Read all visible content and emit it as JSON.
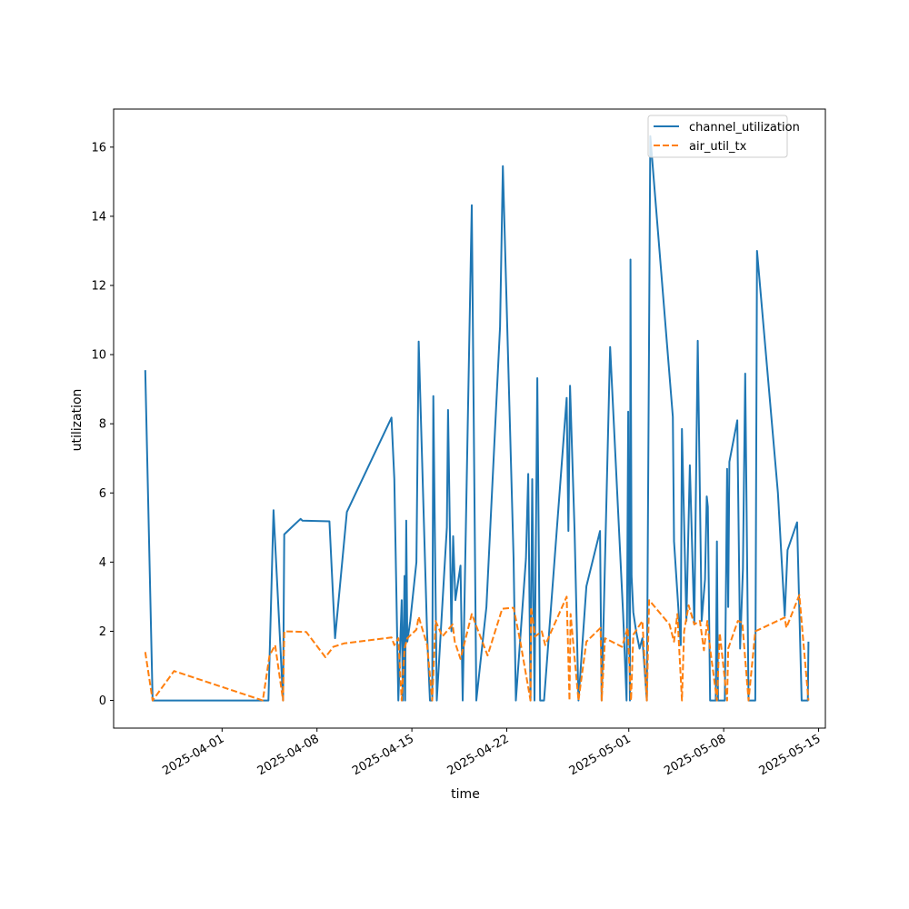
{
  "chart_data": {
    "type": "line",
    "title": "",
    "xlabel": "time",
    "ylabel": "utilization",
    "x_axis_type": "date",
    "xlim": [
      "2025-03-24T00:00",
      "2025-05-15T12:00"
    ],
    "ylim": [
      -0.8,
      17.1
    ],
    "grid": false,
    "legend": "top-right",
    "xticks": [
      "2025-04-01",
      "2025-04-08",
      "2025-04-15",
      "2025-04-22",
      "2025-05-01",
      "2025-05-08",
      "2025-05-15"
    ],
    "yticks": [
      0,
      2,
      4,
      6,
      8,
      10,
      12,
      14,
      16
    ],
    "series": [
      {
        "name": "channel_utilization",
        "color": "#1f77b4",
        "style": "solid",
        "points": [
          [
            "2025-03-26T08:00",
            9.55
          ],
          [
            "2025-03-26T21:00",
            0.0
          ],
          [
            "2025-04-04T00:00",
            0.0
          ],
          [
            "2025-04-04T10:00",
            0.0
          ],
          [
            "2025-04-04T19:00",
            5.5
          ],
          [
            "2025-04-05T12:00",
            0.0
          ],
          [
            "2025-04-05T14:00",
            4.8
          ],
          [
            "2025-04-06T06:00",
            5.05
          ],
          [
            "2025-04-06T19:00",
            5.25
          ],
          [
            "2025-04-06T22:00",
            5.2
          ],
          [
            "2025-04-08T22:00",
            5.18
          ],
          [
            "2025-04-09T08:00",
            1.8
          ],
          [
            "2025-04-10T05:00",
            5.45
          ],
          [
            "2025-04-13T12:00",
            8.18
          ],
          [
            "2025-04-13T17:00",
            6.4
          ],
          [
            "2025-04-14T00:00",
            0.0
          ],
          [
            "2025-04-14T06:00",
            2.9
          ],
          [
            "2025-04-14T08:00",
            0.0
          ],
          [
            "2025-04-14T11:00",
            3.6
          ],
          [
            "2025-04-14T12:00",
            0.0
          ],
          [
            "2025-04-14T14:00",
            5.2
          ],
          [
            "2025-04-14T16:00",
            1.7
          ],
          [
            "2025-04-14T21:00",
            2.3
          ],
          [
            "2025-04-15T08:00",
            4.0
          ],
          [
            "2025-04-15T12:00",
            10.38
          ],
          [
            "2025-04-16T03:00",
            1.9
          ],
          [
            "2025-04-16T08:00",
            0.0
          ],
          [
            "2025-04-16T12:00",
            0.0
          ],
          [
            "2025-04-16T14:00",
            8.8
          ],
          [
            "2025-04-16T20:00",
            0.0
          ],
          [
            "2025-04-17T14:00",
            5.0
          ],
          [
            "2025-04-17T16:00",
            8.4
          ],
          [
            "2025-04-17T22:00",
            2.0
          ],
          [
            "2025-04-18T01:00",
            4.75
          ],
          [
            "2025-04-18T05:00",
            2.9
          ],
          [
            "2025-04-18T14:00",
            3.9
          ],
          [
            "2025-04-18T18:00",
            0.0
          ],
          [
            "2025-04-19T10:00",
            14.32
          ],
          [
            "2025-04-19T18:00",
            0.0
          ],
          [
            "2025-04-20T12:00",
            2.7
          ],
          [
            "2025-04-21T12:00",
            10.8
          ],
          [
            "2025-04-21T17:00",
            15.45
          ],
          [
            "2025-04-22T12:00",
            4.1
          ],
          [
            "2025-04-22T16:00",
            0.0
          ],
          [
            "2025-04-23T10:00",
            4.1
          ],
          [
            "2025-04-23T14:00",
            6.55
          ],
          [
            "2025-04-23T18:00",
            0.0
          ],
          [
            "2025-04-23T21:00",
            6.4
          ],
          [
            "2025-04-24T01:00",
            0.0
          ],
          [
            "2025-04-24T06:00",
            9.32
          ],
          [
            "2025-04-24T11:00",
            0.0
          ],
          [
            "2025-04-24T18:00",
            0.0
          ],
          [
            "2025-04-26T10:00",
            8.75
          ],
          [
            "2025-04-26T13:00",
            4.9
          ],
          [
            "2025-04-26T16:00",
            9.1
          ],
          [
            "2025-04-27T00:00",
            4.9
          ],
          [
            "2025-04-27T07:00",
            0.0
          ],
          [
            "2025-04-27T21:00",
            3.3
          ],
          [
            "2025-04-28T21:00",
            4.9
          ],
          [
            "2025-04-29T00:00",
            0.0
          ],
          [
            "2025-04-29T15:00",
            10.22
          ],
          [
            "2025-04-30T14:00",
            2.5
          ],
          [
            "2025-04-30T20:00",
            0.0
          ],
          [
            "2025-04-30T23:00",
            8.35
          ],
          [
            "2025-05-01T00:00",
            4.5
          ],
          [
            "2025-05-01T02:00",
            0.0
          ],
          [
            "2025-05-01T03:00",
            12.75
          ],
          [
            "2025-05-01T05:00",
            3.6
          ],
          [
            "2025-05-01T08:00",
            2.55
          ],
          [
            "2025-05-01T13:00",
            2.0
          ],
          [
            "2025-05-01T19:00",
            1.5
          ],
          [
            "2025-05-02T00:00",
            1.8
          ],
          [
            "2025-05-02T08:00",
            0.0
          ],
          [
            "2025-05-02T14:00",
            16.32
          ],
          [
            "2025-05-04T06:00",
            8.2
          ],
          [
            "2025-05-04T08:00",
            4.6
          ],
          [
            "2025-05-04T20:00",
            1.6
          ],
          [
            "2025-05-04T22:00",
            7.85
          ],
          [
            "2025-05-05T06:00",
            2.3
          ],
          [
            "2025-05-05T12:00",
            6.8
          ],
          [
            "2025-05-05T20:00",
            2.2
          ],
          [
            "2025-05-06T02:00",
            10.4
          ],
          [
            "2025-05-06T09:00",
            2.3
          ],
          [
            "2025-05-06T15:00",
            3.5
          ],
          [
            "2025-05-06T18:00",
            5.9
          ],
          [
            "2025-05-06T20:00",
            5.6
          ],
          [
            "2025-05-07T00:00",
            0.0
          ],
          [
            "2025-05-07T10:00",
            0.0
          ],
          [
            "2025-05-07T12:00",
            4.6
          ],
          [
            "2025-05-07T14:00",
            0.0
          ],
          [
            "2025-05-08T02:00",
            0.0
          ],
          [
            "2025-05-08T06:00",
            6.7
          ],
          [
            "2025-05-08T08:00",
            2.7
          ],
          [
            "2025-05-08T10:00",
            6.9
          ],
          [
            "2025-05-09T00:00",
            8.1
          ],
          [
            "2025-05-09T05:00",
            1.5
          ],
          [
            "2025-05-09T10:00",
            3.8
          ],
          [
            "2025-05-09T14:00",
            9.45
          ],
          [
            "2025-05-09T20:00",
            0.0
          ],
          [
            "2025-05-10T08:00",
            0.0
          ],
          [
            "2025-05-10T11:00",
            13.0
          ],
          [
            "2025-05-12T00:00",
            6.0
          ],
          [
            "2025-05-12T12:00",
            2.45
          ],
          [
            "2025-05-12T17:00",
            4.35
          ],
          [
            "2025-05-13T10:00",
            5.15
          ],
          [
            "2025-05-13T18:00",
            0.0
          ],
          [
            "2025-05-14T05:00",
            0.0
          ],
          [
            "2025-05-14T06:00",
            1.7
          ]
        ]
      },
      {
        "name": "air_util_tx",
        "color": "#ff7f0e",
        "style": "dashed",
        "points": [
          [
            "2025-03-26T08:00",
            1.4
          ],
          [
            "2025-03-26T21:00",
            0.0
          ],
          [
            "2025-03-28T11:00",
            0.85
          ],
          [
            "2025-04-04T00:00",
            0.0
          ],
          [
            "2025-04-04T12:00",
            1.3
          ],
          [
            "2025-04-04T22:00",
            1.6
          ],
          [
            "2025-04-05T12:00",
            0.0
          ],
          [
            "2025-04-05T14:00",
            2.0
          ],
          [
            "2025-04-07T05:00",
            1.98
          ],
          [
            "2025-04-08T15:00",
            1.25
          ],
          [
            "2025-04-09T05:00",
            1.55
          ],
          [
            "2025-04-10T00:00",
            1.65
          ],
          [
            "2025-04-13T12:00",
            1.82
          ],
          [
            "2025-04-13T17:00",
            1.6
          ],
          [
            "2025-04-14T00:00",
            1.8
          ],
          [
            "2025-04-14T06:00",
            0.0
          ],
          [
            "2025-04-14T11:00",
            1.5
          ],
          [
            "2025-04-14T16:00",
            1.8
          ],
          [
            "2025-04-15T08:00",
            2.05
          ],
          [
            "2025-04-15T12:00",
            2.42
          ],
          [
            "2025-04-16T03:00",
            1.6
          ],
          [
            "2025-04-16T12:00",
            0.0
          ],
          [
            "2025-04-16T18:00",
            2.3
          ],
          [
            "2025-04-17T06:00",
            1.85
          ],
          [
            "2025-04-18T00:00",
            2.2
          ],
          [
            "2025-04-18T04:00",
            1.7
          ],
          [
            "2025-04-18T14:00",
            1.2
          ],
          [
            "2025-04-19T10:00",
            2.5
          ],
          [
            "2025-04-20T14:00",
            1.3
          ],
          [
            "2025-04-21T16:00",
            2.65
          ],
          [
            "2025-04-22T12:00",
            2.68
          ],
          [
            "2025-04-23T00:00",
            1.7
          ],
          [
            "2025-04-23T18:00",
            0.0
          ],
          [
            "2025-04-23T19:00",
            2.7
          ],
          [
            "2025-04-24T02:00",
            1.85
          ],
          [
            "2025-04-24T14:00",
            2.0
          ],
          [
            "2025-04-24T20:00",
            1.6
          ],
          [
            "2025-04-26T10:00",
            3.0
          ],
          [
            "2025-04-26T15:00",
            0.0
          ],
          [
            "2025-04-26T17:00",
            2.5
          ],
          [
            "2025-04-27T07:00",
            0.0
          ],
          [
            "2025-04-27T21:00",
            1.7
          ],
          [
            "2025-04-28T22:00",
            2.1
          ],
          [
            "2025-04-29T00:00",
            0.0
          ],
          [
            "2025-04-29T06:00",
            1.8
          ],
          [
            "2025-04-30T12:00",
            1.55
          ],
          [
            "2025-04-30T22:00",
            2.1
          ],
          [
            "2025-05-01T04:00",
            0.0
          ],
          [
            "2025-05-01T08:00",
            1.9
          ],
          [
            "2025-05-02T00:00",
            2.3
          ],
          [
            "2025-05-02T08:00",
            0.0
          ],
          [
            "2025-05-02T12:00",
            2.9
          ],
          [
            "2025-05-04T00:00",
            2.2
          ],
          [
            "2025-05-04T08:00",
            1.7
          ],
          [
            "2025-05-04T14:00",
            2.5
          ],
          [
            "2025-05-04T22:00",
            0.0
          ],
          [
            "2025-05-05T02:00",
            2.0
          ],
          [
            "2025-05-05T10:00",
            2.75
          ],
          [
            "2025-05-05T20:00",
            2.2
          ],
          [
            "2025-05-06T06:00",
            2.3
          ],
          [
            "2025-05-06T13:00",
            1.45
          ],
          [
            "2025-05-06T19:00",
            2.3
          ],
          [
            "2025-05-07T00:00",
            1.5
          ],
          [
            "2025-05-07T12:00",
            0.0
          ],
          [
            "2025-05-07T17:00",
            1.95
          ],
          [
            "2025-05-08T06:00",
            0.0
          ],
          [
            "2025-05-08T08:00",
            1.5
          ],
          [
            "2025-05-09T01:00",
            2.3
          ],
          [
            "2025-05-09T09:00",
            2.25
          ],
          [
            "2025-05-09T20:00",
            0.0
          ],
          [
            "2025-05-10T08:00",
            2.0
          ],
          [
            "2025-05-12T12:00",
            2.4
          ],
          [
            "2025-05-12T15:00",
            2.1
          ],
          [
            "2025-05-13T14:00",
            3.05
          ],
          [
            "2025-05-13T20:00",
            1.9
          ],
          [
            "2025-05-14T06:00",
            0.0
          ]
        ]
      }
    ]
  }
}
